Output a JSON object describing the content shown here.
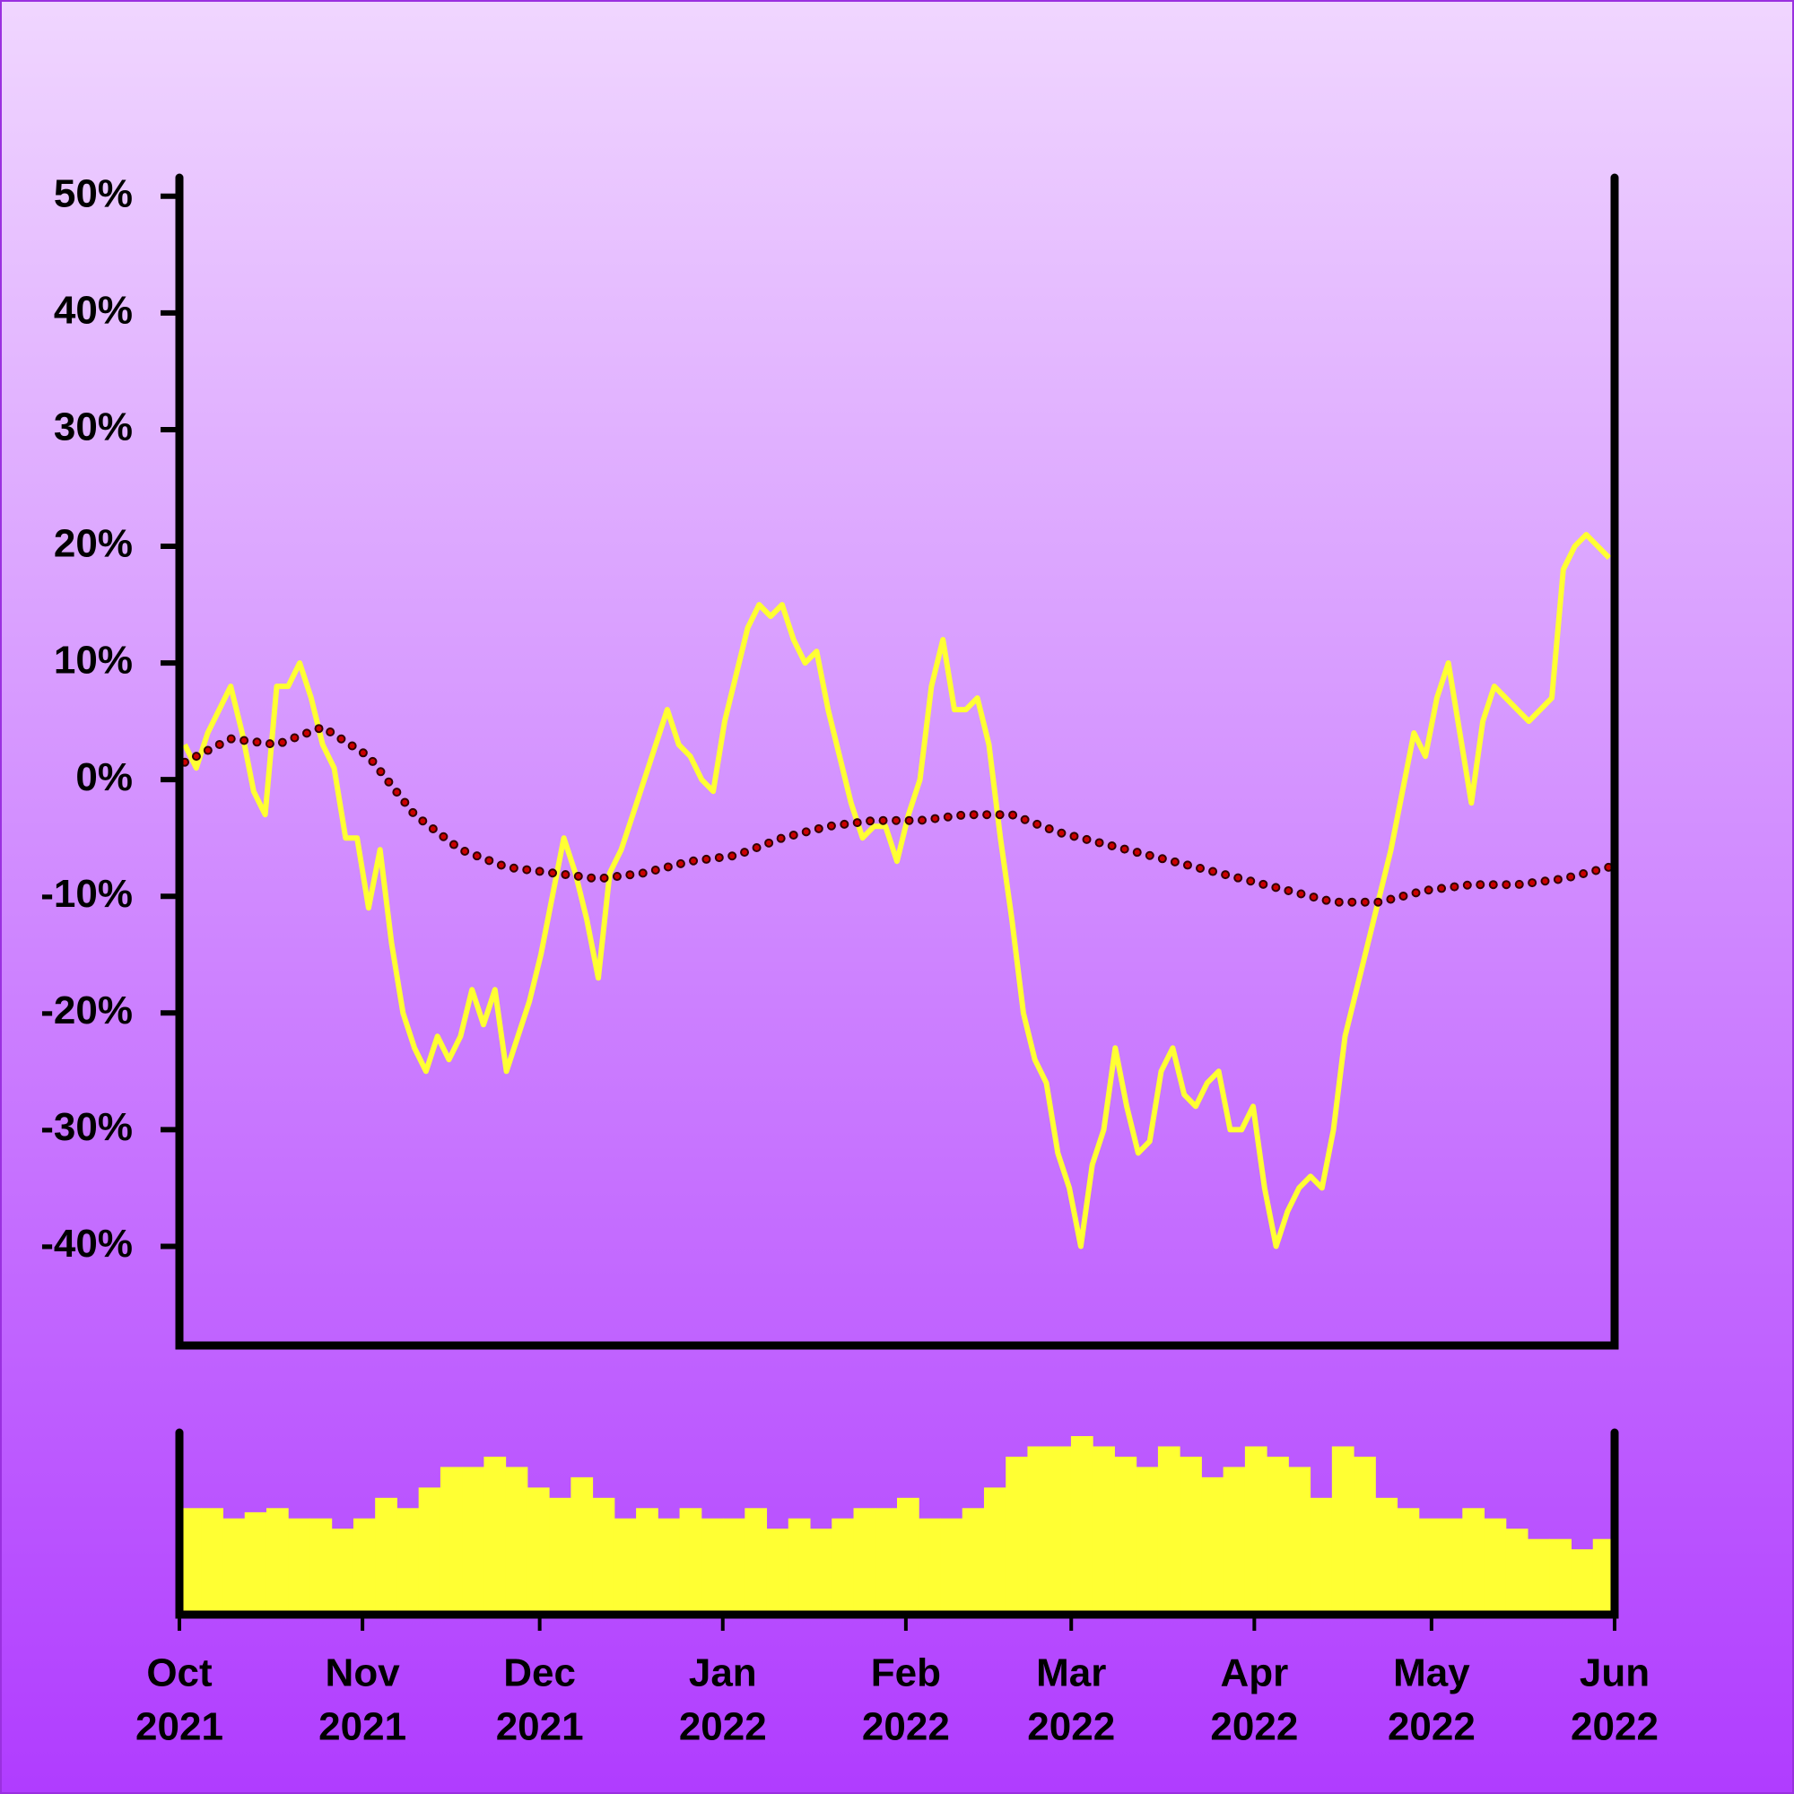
{
  "chart_data": {
    "type": "line",
    "xlim": [
      "2021-10",
      "2022-06"
    ],
    "xticks": [
      {
        "value": "2021-10",
        "label": [
          "Oct",
          "2021"
        ]
      },
      {
        "value": "2021-11",
        "label": [
          "Nov",
          "2021"
        ]
      },
      {
        "value": "2021-12",
        "label": [
          "Dec",
          "2021"
        ]
      },
      {
        "value": "2022-01",
        "label": [
          "Jan",
          "2022"
        ]
      },
      {
        "value": "2022-02",
        "label": [
          "Feb",
          "2022"
        ]
      },
      {
        "value": "2022-03",
        "label": [
          "Mar",
          "2022"
        ]
      },
      {
        "value": "2022-04",
        "label": [
          "Apr",
          "2022"
        ]
      },
      {
        "value": "2022-05",
        "label": [
          "May",
          "2022"
        ]
      },
      {
        "value": "2022-06",
        "label": [
          "Jun",
          "2022"
        ]
      }
    ],
    "ylim": [
      -48.5,
      51.6
    ],
    "yticks": [
      {
        "value": 50,
        "label": "50%"
      },
      {
        "value": 40,
        "label": "40%"
      },
      {
        "value": 30,
        "label": "30%"
      },
      {
        "value": 20,
        "label": "20%"
      },
      {
        "value": 10,
        "label": "10%"
      },
      {
        "value": 0,
        "label": "0%"
      },
      {
        "value": -10,
        "label": "-10%"
      },
      {
        "value": -20,
        "label": "-20%"
      },
      {
        "value": -30,
        "label": "-30%"
      },
      {
        "value": -40,
        "label": "-40%"
      }
    ],
    "series": [
      {
        "color": "#ffff33",
        "style": "solid",
        "values": [
          3,
          1,
          4,
          6,
          8,
          4,
          -1,
          -3,
          8,
          8,
          10,
          7,
          3,
          1,
          -5,
          -5,
          -11,
          -6,
          -14,
          -20,
          -23,
          -25,
          -22,
          -24,
          -22,
          -18,
          -21,
          -18,
          -25,
          -22,
          -19,
          -15,
          -10,
          -5,
          -8,
          -12,
          -17,
          -8,
          -6,
          -3,
          0,
          3,
          6,
          3,
          2,
          0,
          -1,
          5,
          9,
          13,
          15,
          14,
          15,
          12,
          10,
          11,
          6,
          2,
          -2,
          -5,
          -4,
          -4,
          -7,
          -3,
          0,
          8,
          12,
          6,
          6,
          7,
          3,
          -5,
          -12,
          -20,
          -24,
          -26,
          -32,
          -35,
          -40,
          -33,
          -30,
          -23,
          -28,
          -32,
          -31,
          -25,
          -23,
          -27,
          -28,
          -26,
          -25,
          -30,
          -30,
          -28,
          -35,
          -40,
          -37,
          -35,
          -34,
          -35,
          -30,
          -22,
          -18,
          -14,
          -10,
          -6,
          -1,
          4,
          2,
          7,
          10,
          4,
          -2,
          5,
          8,
          7,
          6,
          5,
          6,
          7,
          18,
          20,
          21,
          20,
          19
        ]
      },
      {
        "color": "#cc0000",
        "style": "dotted",
        "values": [
          1.5,
          3.5,
          3,
          4.5,
          2,
          -3,
          -6,
          -7.5,
          -8,
          -8.5,
          -8,
          -7,
          -6.5,
          -5,
          -4,
          -3.5,
          -3.5,
          -3,
          -3,
          -4.5,
          -5.5,
          -6.5,
          -7.5,
          -8.5,
          -9.5,
          -10.5,
          -10.5,
          -9.5,
          -9,
          -9,
          -8.5,
          -7.5
        ]
      }
    ],
    "volume": {
      "type": "bar",
      "color": "#ffff33",
      "values": [
        50,
        50,
        45,
        48,
        50,
        45,
        45,
        40,
        45,
        55,
        50,
        60,
        70,
        70,
        75,
        70,
        60,
        55,
        65,
        55,
        45,
        50,
        45,
        50,
        45,
        45,
        50,
        40,
        45,
        40,
        45,
        50,
        50,
        55,
        45,
        45,
        50,
        60,
        75,
        80,
        80,
        85,
        80,
        75,
        70,
        80,
        75,
        65,
        70,
        80,
        75,
        70,
        55,
        80,
        75,
        55,
        50,
        45,
        45,
        50,
        45,
        40,
        35,
        35,
        30,
        35
      ]
    }
  }
}
